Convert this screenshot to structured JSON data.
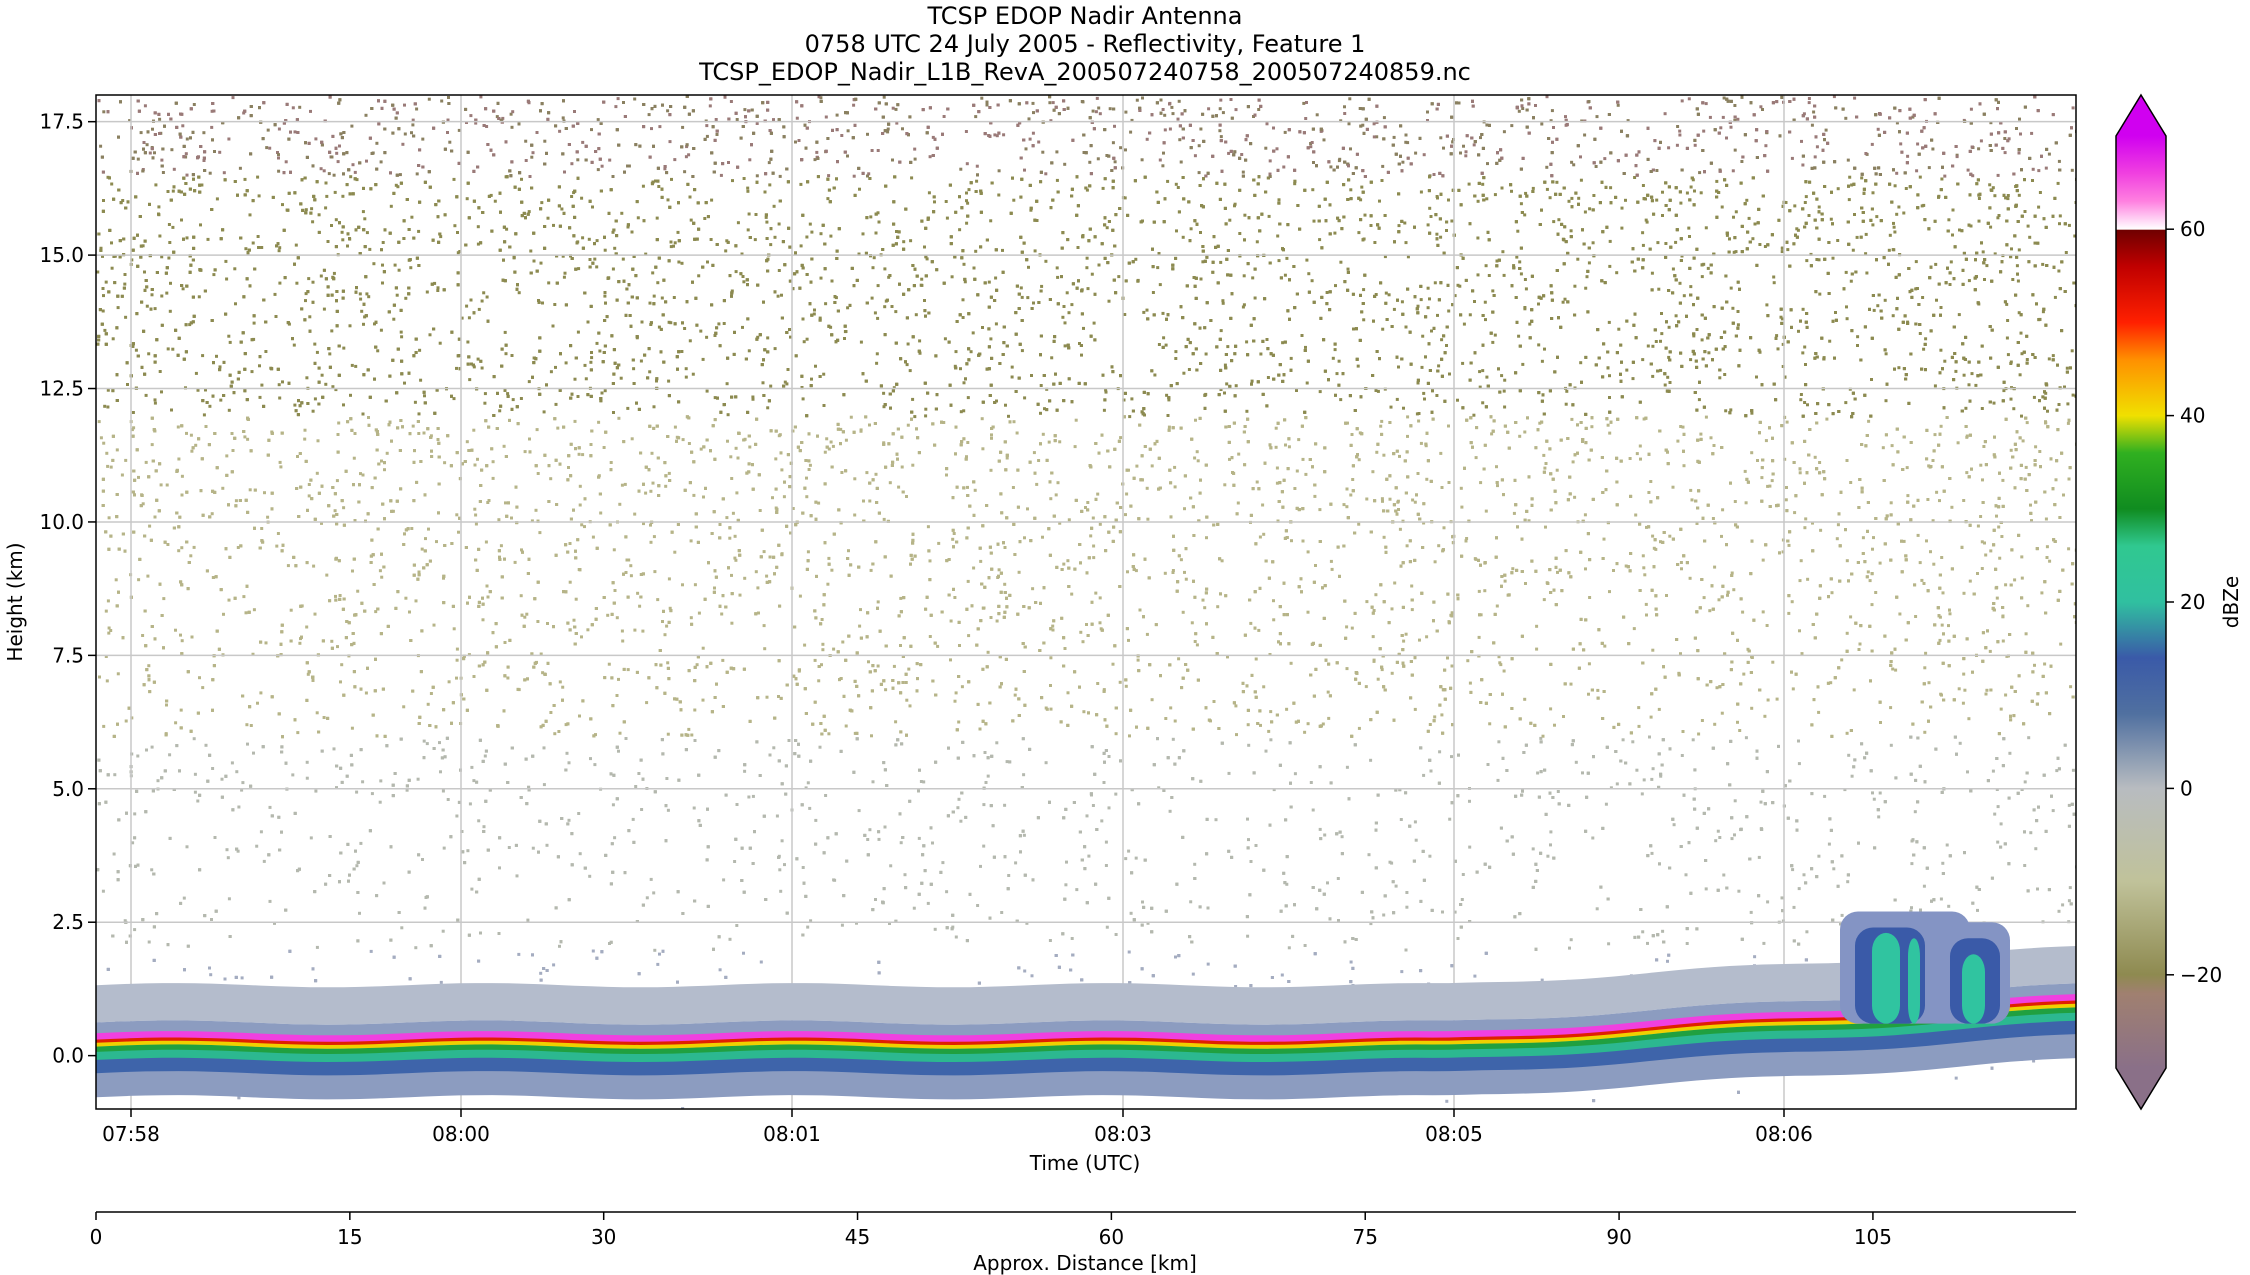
{
  "chart_data": {
    "type": "heatmap",
    "title_lines": [
      "TCSP EDOP Nadir Antenna",
      "0758 UTC 24 July 2005 - Reflectivity, Feature 1",
      "TCSP_EDOP_Nadir_L1B_RevA_200507240758_200507240859.nc"
    ],
    "xlabel": "Time (UTC)",
    "ylabel": "Height (km)",
    "x_ticks": [
      "07:58",
      "08:00",
      "08:01",
      "08:03",
      "08:05",
      "08:06"
    ],
    "y_ticks": [
      "0.0",
      "2.5",
      "5.0",
      "7.5",
      "10.0",
      "12.5",
      "15.0",
      "17.5"
    ],
    "ylim": [
      -1.0,
      18.0
    ],
    "x2label": "Approx. Distance [km]",
    "x2_ticks": [
      "0",
      "15",
      "30",
      "45",
      "60",
      "75",
      "90",
      "105"
    ],
    "x2lim": [
      0,
      117
    ],
    "colorbar": {
      "label": "dBZe",
      "ticks": [
        "−20",
        "0",
        "20",
        "40",
        "60"
      ],
      "range": [
        -30,
        70
      ],
      "extend": "both"
    },
    "grid": true
  }
}
